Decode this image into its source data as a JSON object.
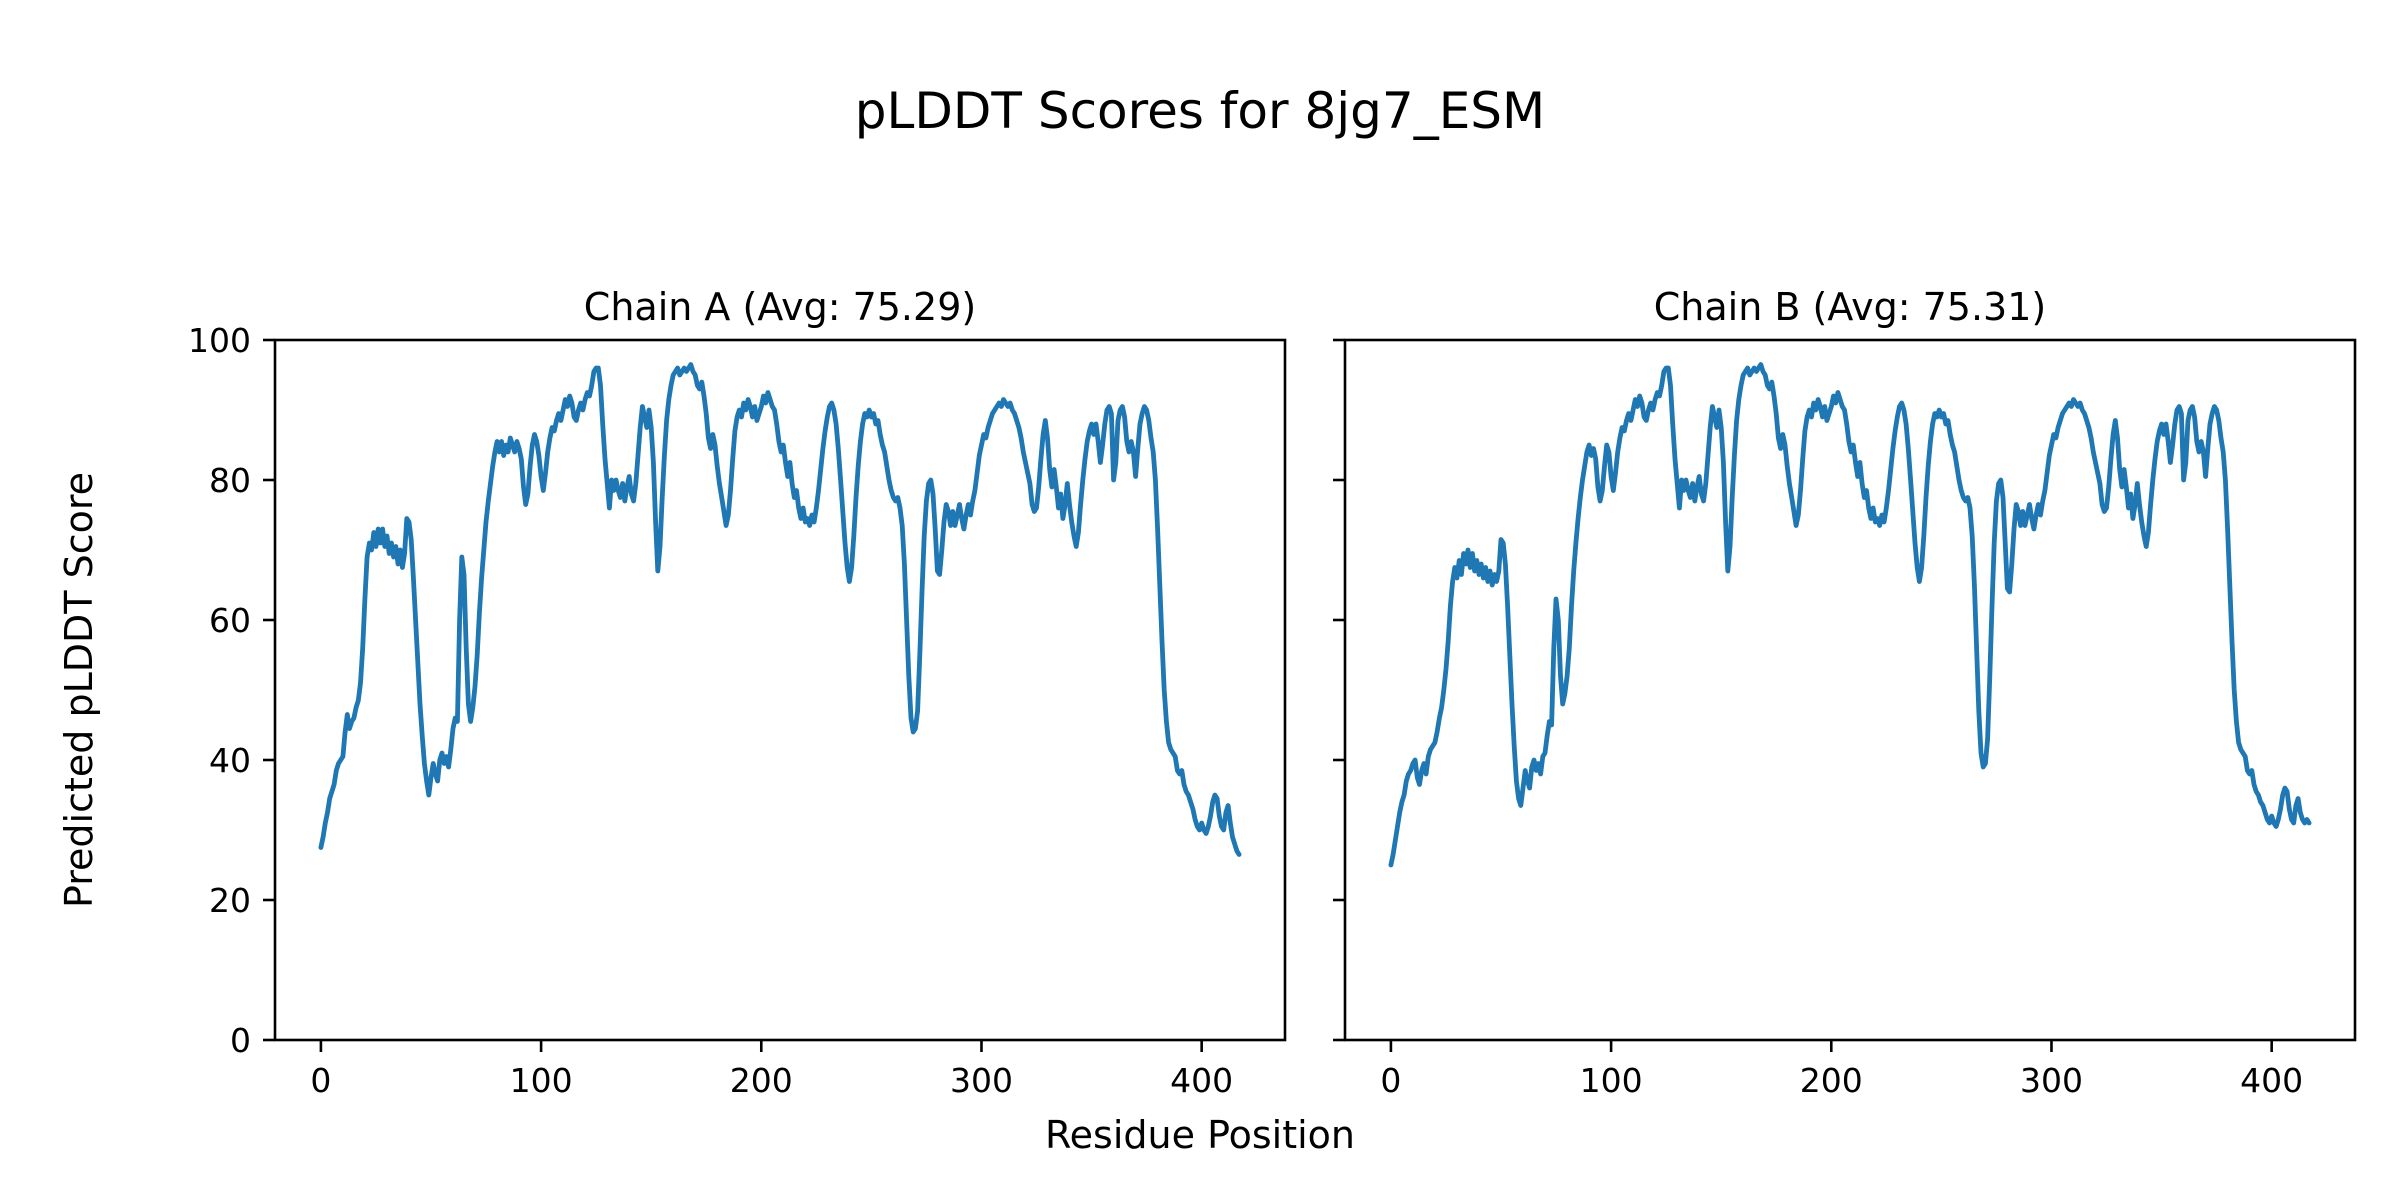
{
  "figure": {
    "title": "pLDDT Scores for 8jg7_ESM",
    "xlabel": "Residue Position",
    "ylabel": "Predicted pLDDT Score",
    "background_color": "#ffffff",
    "text_color": "#000000",
    "spine_color": "#000000"
  },
  "chart_data": [
    {
      "type": "line",
      "title": "Chain A",
      "avg": 75.29,
      "title_full": "Chain A (Avg: 75.29)",
      "line_color": "#1f77b4",
      "xlim": [
        -20.85,
        437.85
      ],
      "ylim": [
        0,
        100
      ],
      "xticks": [
        0,
        100,
        200,
        300,
        400
      ],
      "yticks": [
        0,
        20,
        40,
        60,
        80,
        100
      ],
      "ytick_labels_shown": true,
      "grid": false,
      "legend": "none",
      "x_start": 0,
      "values": [
        27.5,
        29,
        31,
        32.5,
        34.5,
        35.5,
        36.5,
        38.5,
        39.5,
        40,
        40.5,
        44,
        46.5,
        44.5,
        45.5,
        46,
        47.5,
        48.5,
        51,
        56,
        63,
        69,
        71,
        70,
        72.5,
        70.5,
        73,
        71,
        73,
        70.5,
        72,
        69.5,
        71,
        69,
        70.5,
        68,
        70,
        67.5,
        69.5,
        74.5,
        74,
        71.5,
        66,
        60,
        54,
        48,
        43.5,
        39.5,
        37,
        35,
        37.5,
        39.5,
        38,
        37,
        40,
        41,
        39.5,
        40.5,
        39,
        41.5,
        44.5,
        46,
        45.5,
        60,
        69,
        66.5,
        56,
        48,
        45.5,
        47.5,
        50.5,
        55,
        61,
        66,
        70,
        74,
        77,
        79.5,
        82,
        84,
        85.5,
        84,
        85.5,
        83.5,
        85,
        84,
        86,
        85,
        84,
        85.5,
        84.5,
        83,
        79,
        76.5,
        78,
        82,
        85,
        86.5,
        85.5,
        83.5,
        80.5,
        78.5,
        81,
        84,
        86,
        87.5,
        87,
        88.5,
        89.5,
        88.5,
        90,
        91.5,
        90.5,
        92,
        91,
        89,
        88.5,
        90,
        91,
        90,
        91.5,
        92.5,
        92,
        93.5,
        95.5,
        96,
        96,
        93.5,
        88,
        83,
        79.5,
        76,
        80,
        78.5,
        80,
        78.5,
        77.5,
        79.5,
        77,
        79,
        80.5,
        78,
        77,
        79.5,
        83.5,
        87.5,
        90.5,
        89,
        87.5,
        90,
        87.5,
        82.5,
        74,
        67,
        70.5,
        77.5,
        83.5,
        88.5,
        91.5,
        93.5,
        95,
        95.5,
        96,
        95,
        95.5,
        96,
        95.5,
        96,
        96.5,
        95.5,
        95,
        93.5,
        93,
        94,
        92,
        89.5,
        86,
        84.5,
        86.5,
        85,
        82,
        79.5,
        77.5,
        75.5,
        73.5,
        75,
        78.5,
        83,
        87,
        89,
        90,
        89,
        91,
        90,
        91.5,
        90.5,
        89,
        90.5,
        88.5,
        89.5,
        90.5,
        92,
        91,
        92.5,
        91.5,
        90.5,
        90,
        88,
        85.5,
        84,
        85,
        82.5,
        80.5,
        82.5,
        79.5,
        77.5,
        78.5,
        76,
        74.5,
        76,
        74,
        74.5,
        73.5,
        75,
        74,
        76,
        78.5,
        81.5,
        84.5,
        87,
        89,
        90.5,
        91,
        90,
        88,
        84.5,
        80,
        75.5,
        71,
        67.5,
        65.5,
        67.5,
        72,
        77.5,
        82,
        85.5,
        88,
        89.5,
        89,
        90,
        89,
        89.5,
        88,
        88.5,
        86.5,
        85,
        84,
        82,
        80,
        78.5,
        77.5,
        77,
        77.5,
        76,
        73.5,
        68,
        60,
        52,
        46,
        44,
        44.5,
        47,
        55,
        64,
        72,
        77,
        79.5,
        80,
        78,
        73,
        67,
        66.5,
        70,
        74,
        76.5,
        75.5,
        73.5,
        75.5,
        73.5,
        75,
        76.5,
        74.5,
        73,
        75,
        76.5,
        75,
        77,
        78.5,
        81,
        83.5,
        85,
        86.5,
        86,
        87.5,
        88.5,
        89.5,
        90,
        90.5,
        91,
        90.5,
        91.5,
        91,
        90.5,
        91,
        90,
        89.5,
        88.5,
        87.5,
        86,
        84,
        82.5,
        81,
        79.5,
        76.5,
        75.5,
        76,
        79,
        83,
        86.5,
        88.5,
        86,
        81.5,
        79,
        81.5,
        79,
        76,
        78,
        74.5,
        76.5,
        79.5,
        76.5,
        74,
        72,
        70.5,
        72.5,
        76.5,
        80,
        83,
        85.5,
        87,
        88,
        86.5,
        88,
        85.5,
        82.5,
        85,
        88,
        90,
        90.5,
        89.5,
        80,
        82.5,
        88.5,
        90,
        90.5,
        89,
        85.5,
        84,
        85.5,
        84,
        80.5,
        84.5,
        88,
        89.5,
        90.5,
        90,
        88.5,
        86,
        84,
        80,
        73,
        65,
        57,
        50,
        45.5,
        42.5,
        41.5,
        41,
        40.5,
        38.5,
        38,
        38.5,
        36.5,
        35.5,
        35,
        34,
        33,
        31.5,
        30.5,
        30,
        31,
        30,
        29.5,
        30.5,
        32,
        34,
        35,
        34.5,
        32,
        30.5,
        30,
        32.5,
        33.5,
        31,
        29,
        28,
        27,
        26.5
      ]
    },
    {
      "type": "line",
      "title": "Chain B",
      "avg": 75.31,
      "title_full": "Chain B (Avg: 75.31)",
      "line_color": "#1f77b4",
      "xlim": [
        -20.85,
        437.85
      ],
      "ylim": [
        0,
        100
      ],
      "xticks": [
        0,
        100,
        200,
        300,
        400
      ],
      "yticks": [
        0,
        20,
        40,
        60,
        80,
        100
      ],
      "ytick_labels_shown": false,
      "grid": false,
      "legend": "none",
      "x_start": 0,
      "values": [
        25,
        26.5,
        28.5,
        30.5,
        32.5,
        34,
        35,
        37,
        38,
        38.5,
        39.5,
        40,
        37.5,
        36.5,
        38.5,
        39.5,
        38,
        40.5,
        41.5,
        42,
        42.5,
        44,
        46,
        47.5,
        50,
        53,
        57,
        62,
        65.5,
        67.5,
        66,
        68.5,
        66.5,
        69.5,
        68,
        70,
        67.5,
        69.5,
        67,
        68.5,
        66.5,
        68,
        66,
        67.5,
        65.5,
        67,
        65,
        66.5,
        65.5,
        67,
        71.5,
        71,
        68,
        62,
        55,
        48,
        42,
        37,
        34.5,
        33.5,
        36,
        38.5,
        37,
        36,
        39,
        40,
        38.5,
        39.5,
        38,
        40.5,
        41,
        43.5,
        45.5,
        45,
        56,
        63,
        60,
        52,
        48,
        49.5,
        52,
        56,
        62,
        67,
        71,
        74.5,
        77.5,
        80,
        82,
        84,
        85,
        83.5,
        84.5,
        83,
        79,
        77,
        78.5,
        82,
        85,
        84,
        80.5,
        78.5,
        81,
        84,
        86,
        87.5,
        87,
        88.5,
        89.5,
        88.5,
        90,
        91.5,
        90.5,
        92,
        91,
        89,
        88.5,
        90,
        91,
        90,
        91.5,
        92.5,
        92,
        93.5,
        95.5,
        96,
        96,
        93.5,
        88,
        83,
        79.5,
        76,
        80,
        78.5,
        80,
        78.5,
        77.5,
        79.5,
        77,
        79,
        80.5,
        78,
        77,
        79.5,
        83.5,
        87.5,
        90.5,
        89,
        87.5,
        90,
        87.5,
        82.5,
        74,
        67,
        70.5,
        77.5,
        83.5,
        88.5,
        91.5,
        93.5,
        95,
        95.5,
        96,
        95,
        95.5,
        96,
        95.5,
        96,
        96.5,
        95.5,
        95,
        93.5,
        93,
        94,
        92,
        89.5,
        86,
        84.5,
        86.5,
        85,
        82,
        79.5,
        77.5,
        75.5,
        73.5,
        75,
        78.5,
        83,
        87,
        89,
        90,
        89,
        91,
        90,
        91.5,
        90.5,
        89,
        90.5,
        88.5,
        89.5,
        90.5,
        92,
        91,
        92.5,
        91.5,
        90.5,
        90,
        88,
        85.5,
        84,
        85,
        82.5,
        80.5,
        82.5,
        79.5,
        77.5,
        78.5,
        76,
        74.5,
        76,
        74,
        74.5,
        73.5,
        75,
        74,
        76,
        78.5,
        81.5,
        84.5,
        87,
        89,
        90.5,
        91,
        90,
        88,
        84.5,
        80,
        75.5,
        71,
        67.5,
        65.5,
        67.5,
        72,
        77.5,
        82,
        85.5,
        88,
        89.5,
        89,
        90,
        89,
        89.5,
        88,
        88.5,
        86.5,
        85,
        84,
        82,
        80,
        78.5,
        77.5,
        77,
        77.5,
        76,
        72,
        65,
        56,
        47,
        41,
        39,
        39.5,
        43,
        52,
        62,
        71,
        77,
        79.5,
        80,
        77.5,
        71,
        64.5,
        64,
        68,
        73,
        76.5,
        75.5,
        73.5,
        75.5,
        73.5,
        75,
        76.5,
        74.5,
        73,
        75,
        76.5,
        75,
        77,
        78.5,
        81,
        83.5,
        85,
        86.5,
        86,
        87.5,
        88.5,
        89.5,
        90,
        90.5,
        91,
        90.5,
        91.5,
        91,
        90.5,
        91,
        90,
        89.5,
        88.5,
        87.5,
        86,
        84,
        82.5,
        81,
        79.5,
        76.5,
        75.5,
        76,
        79,
        83,
        86.5,
        88.5,
        86,
        81.5,
        79,
        81.5,
        79,
        76,
        78,
        74.5,
        76.5,
        79.5,
        76.5,
        74,
        72,
        70.5,
        72.5,
        76.5,
        80,
        83,
        85.5,
        87,
        88,
        86.5,
        88,
        85.5,
        82.5,
        85,
        88,
        90,
        90.5,
        89.5,
        80,
        82.5,
        88.5,
        90,
        90.5,
        89,
        85.5,
        84,
        85.5,
        84,
        80.5,
        84.5,
        88,
        89.5,
        90.5,
        90,
        88.5,
        86,
        84,
        80,
        73,
        65,
        57,
        50,
        45.5,
        42.5,
        41.5,
        41,
        40.5,
        38.5,
        38,
        38.5,
        36.5,
        35.5,
        35,
        34,
        33.5,
        32.5,
        31.5,
        31,
        32,
        31,
        30.5,
        31.5,
        33,
        35,
        36,
        35.5,
        33,
        31.5,
        31,
        33.5,
        34.5,
        32.5,
        31.5,
        31,
        31.5,
        31
      ]
    }
  ]
}
